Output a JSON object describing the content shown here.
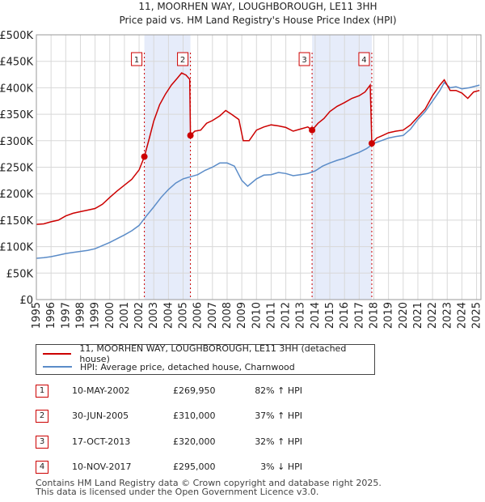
{
  "title": "11, MOORHEN WAY, LOUGHBOROUGH, LE11 3HH",
  "subtitle": "Price paid vs. HM Land Registry's House Price Index (HPI)",
  "legend": {
    "property": "11, MOORHEN WAY, LOUGHBOROUGH, LE11 3HH (detached house)",
    "hpi": "HPI: Average price, detached house, Charnwood"
  },
  "colors": {
    "property": "#cc0000",
    "hpi": "#5b8cc8",
    "band": "#e6ecfa",
    "grid": "#d8d8d8"
  },
  "sales": [
    {
      "num": "1",
      "date": "10-MAY-2002",
      "price": "£269,950",
      "hpi": "82% ↑ HPI"
    },
    {
      "num": "2",
      "date": "30-JUN-2005",
      "price": "£310,000",
      "hpi": "37% ↑ HPI"
    },
    {
      "num": "3",
      "date": "17-OCT-2013",
      "price": "£320,000",
      "hpi": "32% ↑ HPI"
    },
    {
      "num": "4",
      "date": "10-NOV-2017",
      "price": "£295,000",
      "hpi": "3% ↓ HPI"
    }
  ],
  "footer": {
    "line1": "Contains HM Land Registry data © Crown copyright and database right 2025.",
    "line2": "This data is licensed under the Open Government Licence v3.0."
  },
  "chart_data": {
    "type": "line",
    "title": "11, MOORHEN WAY, LOUGHBOROUGH, LE11 3HH",
    "subtitle": "Price paid vs. HM Land Registry's House Price Index (HPI)",
    "xlim": [
      1995,
      2025.3
    ],
    "ylim": [
      0,
      500000
    ],
    "x_ticks": [
      1995,
      1996,
      1997,
      1998,
      1999,
      2000,
      2001,
      2002,
      2003,
      2004,
      2005,
      2006,
      2007,
      2008,
      2009,
      2010,
      2011,
      2012,
      2013,
      2014,
      2015,
      2016,
      2017,
      2018,
      2019,
      2020,
      2021,
      2022,
      2023,
      2024,
      2025
    ],
    "y_ticks": [
      {
        "value": 0,
        "label": "£0"
      },
      {
        "value": 50000,
        "label": "£50K"
      },
      {
        "value": 100000,
        "label": "£100K"
      },
      {
        "value": 150000,
        "label": "£150K"
      },
      {
        "value": 200000,
        "label": "£200K"
      },
      {
        "value": 250000,
        "label": "£250K"
      },
      {
        "value": 300000,
        "label": "£300K"
      },
      {
        "value": 350000,
        "label": "£350K"
      },
      {
        "value": 400000,
        "label": "£400K"
      },
      {
        "value": 450000,
        "label": "£450K"
      },
      {
        "value": 500000,
        "label": "£500K"
      }
    ],
    "shaded_bands": [
      [
        2002.36,
        2005.5
      ],
      [
        2013.79,
        2017.86
      ]
    ],
    "markers": [
      {
        "label": "1",
        "x": 2002.36,
        "y": 269950
      },
      {
        "label": "2",
        "x": 2005.5,
        "y": 310000
      },
      {
        "label": "3",
        "x": 2013.79,
        "y": 320000
      },
      {
        "label": "4",
        "x": 2017.86,
        "y": 295000
      }
    ],
    "series": [
      {
        "name": "11, MOORHEN WAY, LOUGHBOROUGH, LE11 3HH (detached house)",
        "color": "#cc0000",
        "points": [
          [
            1995,
            142000
          ],
          [
            1995.5,
            143000
          ],
          [
            1996,
            147000
          ],
          [
            1996.5,
            150000
          ],
          [
            1997,
            158000
          ],
          [
            1997.5,
            163000
          ],
          [
            1998,
            166000
          ],
          [
            1998.5,
            169000
          ],
          [
            1999,
            172000
          ],
          [
            1999.5,
            180000
          ],
          [
            2000,
            193000
          ],
          [
            2000.5,
            205000
          ],
          [
            2001,
            216000
          ],
          [
            2001.5,
            227000
          ],
          [
            2002,
            245000
          ],
          [
            2002.36,
            269950
          ],
          [
            2002.7,
            305000
          ],
          [
            2003,
            337000
          ],
          [
            2003.4,
            368000
          ],
          [
            2003.8,
            388000
          ],
          [
            2004.2,
            405000
          ],
          [
            2004.6,
            418000
          ],
          [
            2004.9,
            428000
          ],
          [
            2005.2,
            424000
          ],
          [
            2005.45,
            416000
          ],
          [
            2005.5,
            310000
          ],
          [
            2005.8,
            318000
          ],
          [
            2006.2,
            320000
          ],
          [
            2006.6,
            333000
          ],
          [
            2007.0,
            338000
          ],
          [
            2007.5,
            347000
          ],
          [
            2007.9,
            357000
          ],
          [
            2008.3,
            350000
          ],
          [
            2008.8,
            340000
          ],
          [
            2009.1,
            300000
          ],
          [
            2009.5,
            300000
          ],
          [
            2010.0,
            320000
          ],
          [
            2010.5,
            326000
          ],
          [
            2011.0,
            330000
          ],
          [
            2011.5,
            328000
          ],
          [
            2012.0,
            325000
          ],
          [
            2012.5,
            318000
          ],
          [
            2013.0,
            322000
          ],
          [
            2013.5,
            326000
          ],
          [
            2013.79,
            320000
          ],
          [
            2014.2,
            333000
          ],
          [
            2014.6,
            342000
          ],
          [
            2015.0,
            355000
          ],
          [
            2015.5,
            365000
          ],
          [
            2016.0,
            372000
          ],
          [
            2016.5,
            380000
          ],
          [
            2017.0,
            385000
          ],
          [
            2017.4,
            392000
          ],
          [
            2017.75,
            405000
          ],
          [
            2017.86,
            295000
          ],
          [
            2018.2,
            305000
          ],
          [
            2018.6,
            310000
          ],
          [
            2019.0,
            315000
          ],
          [
            2019.5,
            318000
          ],
          [
            2020.0,
            320000
          ],
          [
            2020.5,
            330000
          ],
          [
            2021.0,
            345000
          ],
          [
            2021.5,
            360000
          ],
          [
            2022.0,
            385000
          ],
          [
            2022.5,
            405000
          ],
          [
            2022.8,
            415000
          ],
          [
            2023.2,
            395000
          ],
          [
            2023.6,
            395000
          ],
          [
            2024.0,
            390000
          ],
          [
            2024.4,
            380000
          ],
          [
            2024.8,
            392000
          ],
          [
            2025.2,
            395000
          ]
        ]
      },
      {
        "name": "HPI: Average price, detached house, Charnwood",
        "color": "#5b8cc8",
        "points": [
          [
            1995,
            78000
          ],
          [
            1995.5,
            79000
          ],
          [
            1996,
            81000
          ],
          [
            1996.5,
            84000
          ],
          [
            1997,
            87000
          ],
          [
            1997.5,
            89000
          ],
          [
            1998,
            91000
          ],
          [
            1998.5,
            93000
          ],
          [
            1999,
            96000
          ],
          [
            1999.5,
            102000
          ],
          [
            2000,
            108000
          ],
          [
            2000.5,
            115000
          ],
          [
            2001,
            122000
          ],
          [
            2001.5,
            130000
          ],
          [
            2002,
            140000
          ],
          [
            2002.5,
            158000
          ],
          [
            2003,
            175000
          ],
          [
            2003.5,
            193000
          ],
          [
            2004,
            208000
          ],
          [
            2004.5,
            220000
          ],
          [
            2005,
            228000
          ],
          [
            2005.5,
            232000
          ],
          [
            2006,
            236000
          ],
          [
            2006.5,
            244000
          ],
          [
            2007,
            250000
          ],
          [
            2007.5,
            258000
          ],
          [
            2008,
            258000
          ],
          [
            2008.5,
            252000
          ],
          [
            2009,
            225000
          ],
          [
            2009.4,
            214000
          ],
          [
            2010,
            228000
          ],
          [
            2010.5,
            235000
          ],
          [
            2011,
            236000
          ],
          [
            2011.5,
            240000
          ],
          [
            2012,
            238000
          ],
          [
            2012.5,
            234000
          ],
          [
            2013,
            236000
          ],
          [
            2013.5,
            238000
          ],
          [
            2014,
            243000
          ],
          [
            2014.5,
            252000
          ],
          [
            2015,
            258000
          ],
          [
            2015.5,
            263000
          ],
          [
            2016,
            267000
          ],
          [
            2016.5,
            273000
          ],
          [
            2017,
            278000
          ],
          [
            2017.5,
            285000
          ],
          [
            2018,
            295000
          ],
          [
            2018.5,
            300000
          ],
          [
            2019,
            305000
          ],
          [
            2019.5,
            308000
          ],
          [
            2020,
            310000
          ],
          [
            2020.5,
            322000
          ],
          [
            2021,
            340000
          ],
          [
            2021.5,
            355000
          ],
          [
            2022,
            375000
          ],
          [
            2022.5,
            395000
          ],
          [
            2022.8,
            410000
          ],
          [
            2023.2,
            400000
          ],
          [
            2023.6,
            402000
          ],
          [
            2024,
            398000
          ],
          [
            2024.5,
            400000
          ],
          [
            2025.2,
            405000
          ]
        ]
      }
    ]
  }
}
